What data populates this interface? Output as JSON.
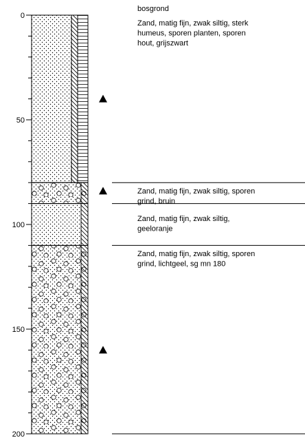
{
  "depth_axis": {
    "ylim": [
      0,
      200
    ],
    "yticks": [
      0,
      50,
      100,
      150,
      200
    ],
    "minor_ticks": [
      10,
      20,
      30,
      40,
      60,
      70,
      80,
      90,
      110,
      120,
      130,
      140,
      160,
      170,
      180,
      190
    ]
  },
  "surface_label": "bosgrond",
  "layers": [
    {
      "top": 0,
      "bottom": 80,
      "humus": true,
      "gravel": false,
      "description": [
        "Zand, matig fijn, zwak siltig, sterk",
        "humeus, sporen planten, sporen",
        "hout, grijszwart"
      ]
    },
    {
      "top": 80,
      "bottom": 90,
      "humus": false,
      "gravel": true,
      "description": [
        "Zand, matig fijn, zwak siltig, sporen",
        "grind, bruin"
      ]
    },
    {
      "top": 90,
      "bottom": 110,
      "humus": false,
      "gravel": false,
      "description": [
        "Zand, matig fijn, zwak siltig,",
        "geeloranje"
      ]
    },
    {
      "top": 110,
      "bottom": 200,
      "humus": false,
      "gravel": true,
      "description": [
        "Zand, matig fijn, zwak siltig, sporen",
        "grind, lichtgeel, sg mn 180"
      ]
    }
  ],
  "samples": [
    40,
    84,
    160
  ]
}
